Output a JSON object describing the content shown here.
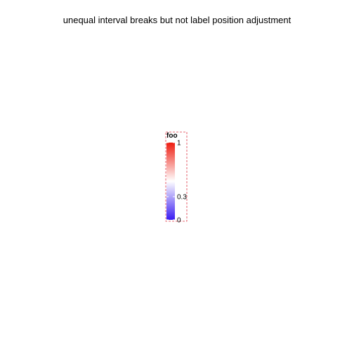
{
  "chart_data": {
    "type": "colorbar",
    "title": "unequal interval breaks but not label position adjustment",
    "legend": {
      "title": "foo",
      "scale_range": [
        0,
        1
      ],
      "breaks": [
        0,
        0.3,
        1
      ],
      "labels": [
        "0",
        "0.3",
        "1"
      ],
      "colors": {
        "low": "#3a1cf2",
        "mid": "#ffffff",
        "high": "#ee1c10"
      },
      "frame_color": "#e03b4a",
      "frame_style": "dashed"
    }
  }
}
